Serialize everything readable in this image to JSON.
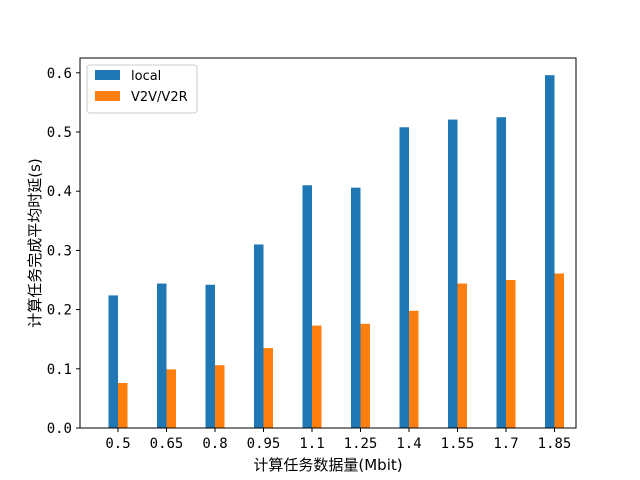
{
  "chart_data": {
    "type": "bar",
    "categories": [
      "0.5",
      "0.65",
      "0.8",
      "0.95",
      "1.1",
      "1.25",
      "1.4",
      "1.55",
      "1.7",
      "1.85"
    ],
    "series": [
      {
        "name": "local",
        "color": "#1f77b4",
        "values": [
          0.224,
          0.244,
          0.242,
          0.31,
          0.41,
          0.406,
          0.508,
          0.521,
          0.525,
          0.596
        ]
      },
      {
        "name": "V2V/V2R",
        "color": "#ff7f0e",
        "values": [
          0.076,
          0.099,
          0.106,
          0.135,
          0.173,
          0.176,
          0.198,
          0.244,
          0.25,
          0.261
        ]
      }
    ],
    "xlabel": "计算任务数据量(Mbit)",
    "ylabel": "计算任务完成平均时延(s)",
    "ylim": [
      0,
      0.6
    ],
    "yticks": [
      "0.0",
      "0.1",
      "0.2",
      "0.3",
      "0.4",
      "0.5",
      "0.6"
    ],
    "legend_position": "top-left",
    "grid": false
  }
}
